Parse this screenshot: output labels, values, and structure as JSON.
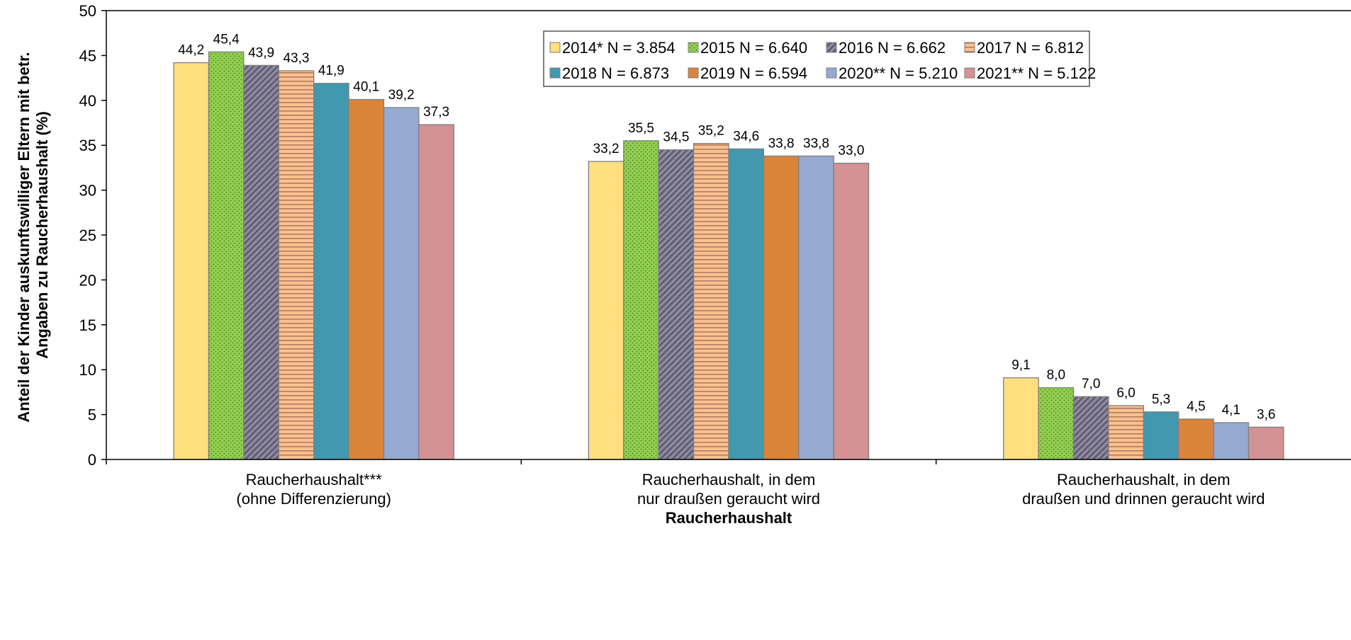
{
  "chart_data": {
    "type": "bar",
    "xlabel": "Raucherhaushalt",
    "ylabel_lines": [
      "Anteil der Kinder auskunftswilliger Eltern mit betr.",
      "Angaben zu Raucherhaushalt (%)"
    ],
    "ylim": [
      0,
      50
    ],
    "yticks": [
      "0",
      "5",
      "10",
      "15",
      "20",
      "25",
      "30",
      "35",
      "40",
      "45",
      "50"
    ],
    "grid": false,
    "legend_position": "top-right",
    "categories": [
      [
        "Raucherhaushalt***",
        "(ohne Differenzierung)"
      ],
      [
        "Raucherhaushalt, in dem",
        "nur draußen geraucht wird"
      ],
      [
        "Raucherhaushalt, in dem",
        "draußen und drinnen geraucht wird"
      ]
    ],
    "series": [
      {
        "name": "2014* N = 3.854",
        "values": [
          44.2,
          33.2,
          9.1
        ],
        "labels": [
          "44,2",
          "33,2",
          "9,1"
        ],
        "color": "#FFDF80",
        "pattern": "solid"
      },
      {
        "name": "2015 N = 6.640",
        "values": [
          45.4,
          35.5,
          8.0
        ],
        "labels": [
          "45,4",
          "35,5",
          "8,0"
        ],
        "color": "#92D050",
        "pattern": "dots"
      },
      {
        "name": "2016 N = 6.662",
        "values": [
          43.9,
          34.5,
          7.0
        ],
        "labels": [
          "43,9",
          "34,5",
          "7,0"
        ],
        "color": "#8E8AA0",
        "pattern": "diagonal"
      },
      {
        "name": "2017 N = 6.812",
        "values": [
          43.3,
          35.2,
          6.0
        ],
        "labels": [
          "43,3",
          "35,2",
          "6,0"
        ],
        "color": "#FAC090",
        "pattern": "horizontal"
      },
      {
        "name": "2018 N = 6.873",
        "values": [
          41.9,
          34.6,
          5.3
        ],
        "labels": [
          "41,9",
          "34,6",
          "5,3"
        ],
        "color": "#4198AF",
        "pattern": "solid"
      },
      {
        "name": "2019 N = 6.594",
        "values": [
          40.1,
          33.8,
          4.5
        ],
        "labels": [
          "40,1",
          "33,8",
          "4,5"
        ],
        "color": "#DA843A",
        "pattern": "solid"
      },
      {
        "name": "2020** N = 5.210",
        "values": [
          39.2,
          33.8,
          4.1
        ],
        "labels": [
          "39,2",
          "33,8",
          "4,1"
        ],
        "color": "#95A9D1",
        "pattern": "solid"
      },
      {
        "name": "2021** N = 5.122",
        "values": [
          37.3,
          33.0,
          3.6
        ],
        "labels": [
          "37,3",
          "33,0",
          "3,6"
        ],
        "color": "#D39293",
        "pattern": "solid"
      }
    ]
  }
}
